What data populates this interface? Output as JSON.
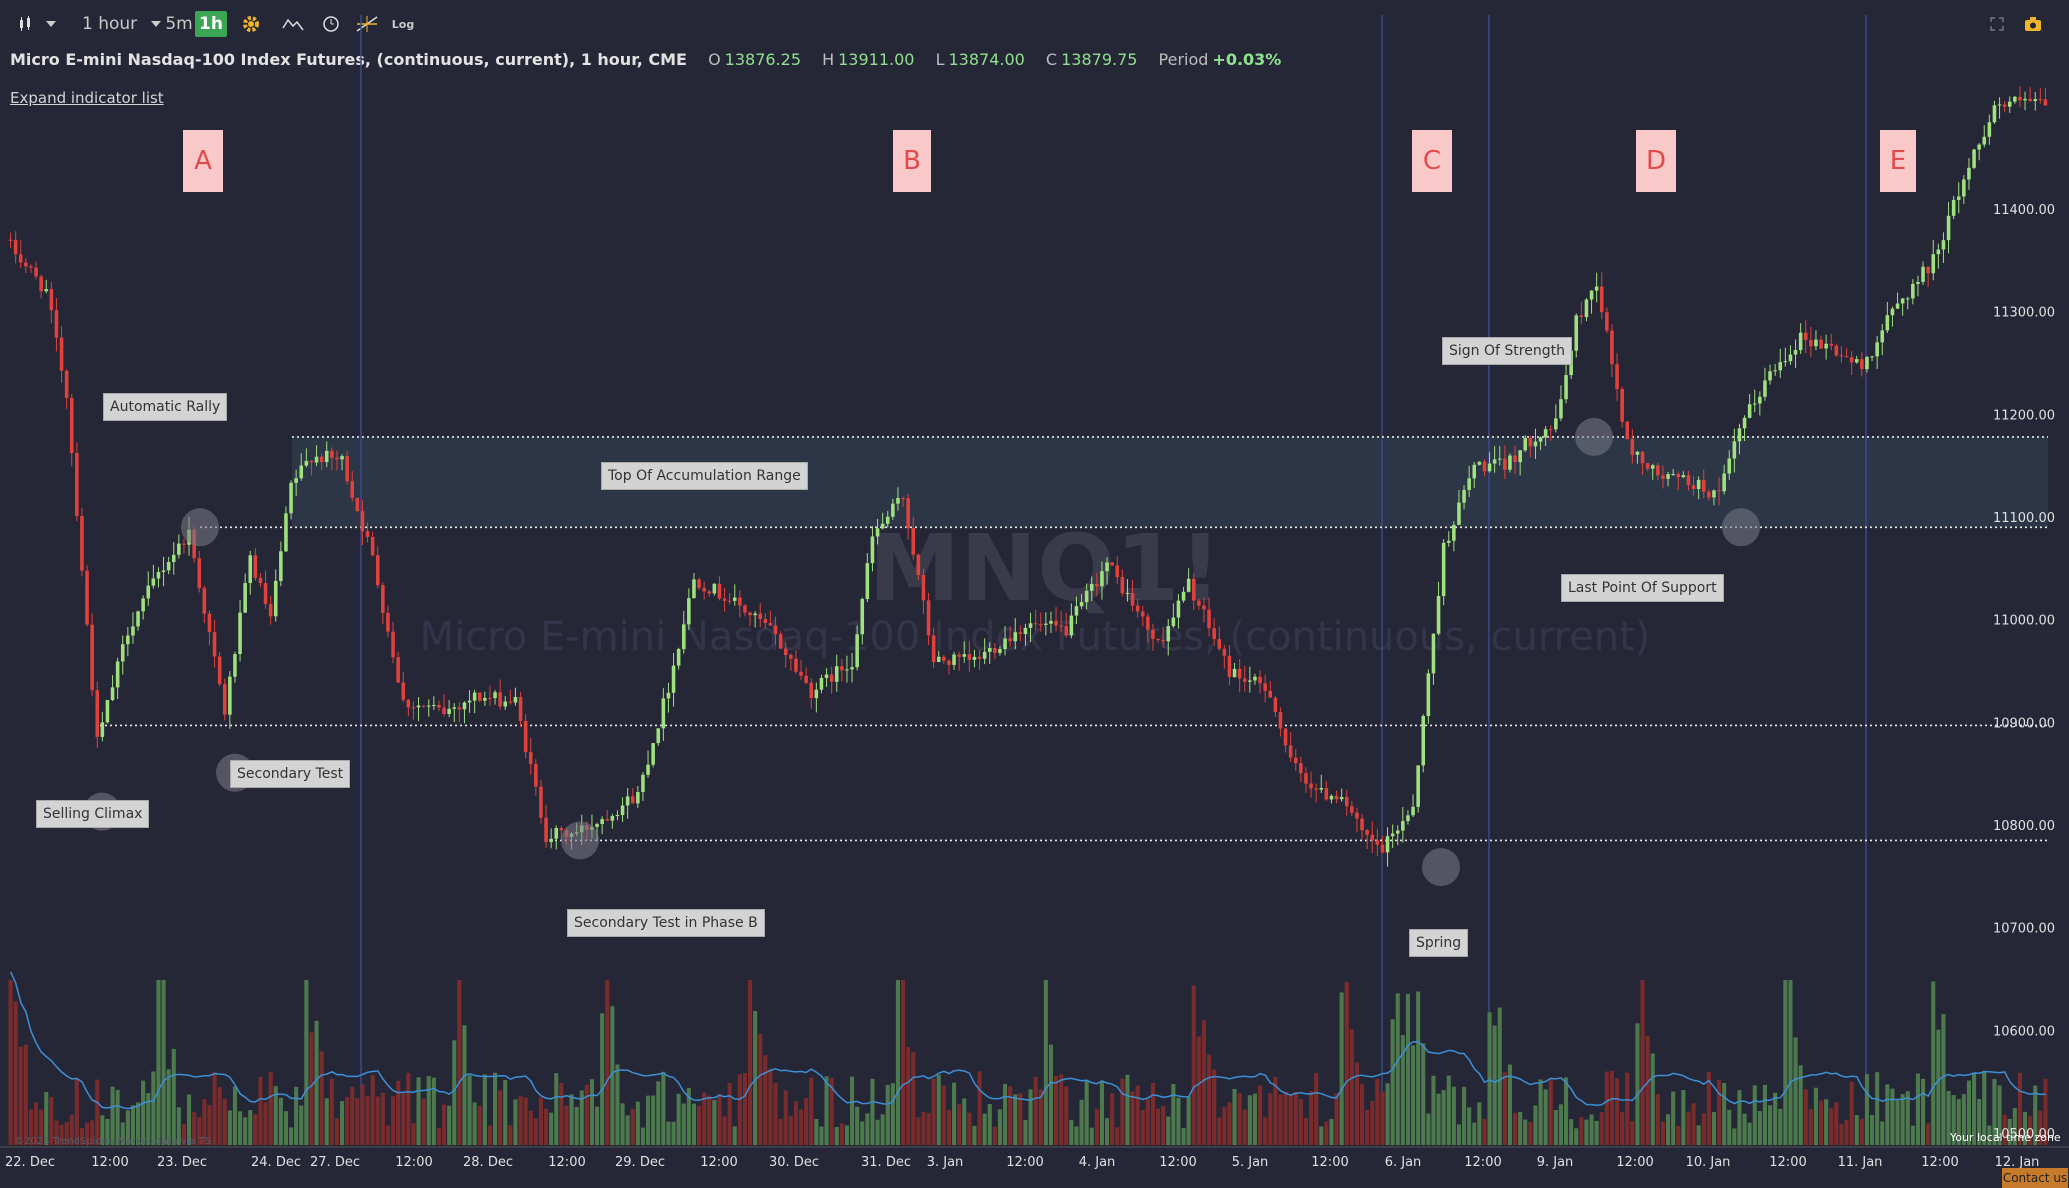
{
  "toolbar": {
    "interval_label": "1 hour",
    "quick_intervals": [
      "5m",
      "1h"
    ],
    "log_label": "Log"
  },
  "info": {
    "title": "Micro E-mini Nasdaq-100 Index Futures, (continuous, current), 1 hour, CME",
    "open_label": "O",
    "open": "13876.25",
    "high_label": "H",
    "high": "13911.00",
    "low_label": "L",
    "low": "13874.00",
    "close_label": "C",
    "close": "13879.75",
    "period_label": "Period",
    "period": "+0.03%"
  },
  "expand_label": "Expand indicator list",
  "watermark": {
    "symbol": "MNQ1!",
    "name": "Micro E-mini Nasdaq-100 Index Futures, (continuous, current)"
  },
  "phases": [
    {
      "label": "A",
      "date_index": 12
    },
    {
      "label": "B",
      "date_index": 116
    },
    {
      "label": "C",
      "date_index": 187
    },
    {
      "label": "D",
      "date_index": 219
    },
    {
      "label": "E",
      "date_index": 250
    }
  ],
  "annotations": [
    {
      "label": "Automatic Rally",
      "price": 11201
    },
    {
      "label": "Selling Climax",
      "price": 10813
    },
    {
      "label": "Secondary Test",
      "price": 10851
    },
    {
      "label": "Top Of Accumulation Range",
      "price": 11142
    },
    {
      "label": "Secondary Test in Phase B",
      "price": 10707
    },
    {
      "label": "Spring",
      "price": 10689
    },
    {
      "label": "Sign Of Strength",
      "price": 11264
    },
    {
      "label": "Last Point Of Support",
      "price": 11034
    }
  ],
  "labels": {
    "local_time": "Your local time zone",
    "contact": "Contact us",
    "copyright": "©2023 TrendSpider. Market data via TS"
  },
  "colors": {
    "up": "#9fe07f",
    "down": "#e0413c",
    "volume_up": "#4d7a4d",
    "volume_down": "#7a2b2b",
    "volume_ma": "#3d8fd6",
    "range_fill": "#2e3a4a",
    "phase_line": "#3a4a8a",
    "background": "#262736"
  },
  "chart_data": {
    "type": "candlestick",
    "y_range": [
      10490,
      11550
    ],
    "y_ticks": [
      10500,
      10600,
      10700,
      10800,
      10900,
      11000,
      11100,
      11200,
      11300,
      11400
    ],
    "y_tick_format": "two_decimals",
    "x_ticks": [
      "22. Dec",
      "12:00",
      "23. Dec",
      "24. Dec",
      "27. Dec",
      "12:00",
      "28. Dec",
      "12:00",
      "29. Dec",
      "12:00",
      "30. Dec",
      "31. Dec",
      "3. Jan",
      "12:00",
      "4. Jan",
      "12:00",
      "5. Jan",
      "12:00",
      "6. Jan",
      "12:00",
      "9. Jan",
      "12:00",
      "10. Jan",
      "12:00",
      "11. Jan",
      "12:00",
      "12. Jan"
    ],
    "horizontal_levels": [
      11178,
      11090,
      10897,
      10785
    ],
    "accumulation_range": [
      11090,
      11178
    ],
    "anchors": [
      [
        0,
        11370
      ],
      [
        8,
        11320
      ],
      [
        12,
        11220
      ],
      [
        18,
        10880
      ],
      [
        24,
        10990
      ],
      [
        30,
        11045
      ],
      [
        36,
        11085
      ],
      [
        43,
        10910
      ],
      [
        48,
        11060
      ],
      [
        52,
        11000
      ],
      [
        56,
        11130
      ],
      [
        60,
        11160
      ],
      [
        66,
        11155
      ],
      [
        72,
        11060
      ],
      [
        78,
        10920
      ],
      [
        86,
        10910
      ],
      [
        92,
        10925
      ],
      [
        100,
        10920
      ],
      [
        106,
        10790
      ],
      [
        112,
        10792
      ],
      [
        118,
        10810
      ],
      [
        124,
        10830
      ],
      [
        130,
        10935
      ],
      [
        135,
        11040
      ],
      [
        142,
        11020
      ],
      [
        150,
        10990
      ],
      [
        158,
        10930
      ],
      [
        166,
        10960
      ],
      [
        170,
        11080
      ],
      [
        176,
        11120
      ],
      [
        182,
        10960
      ],
      [
        190,
        10960
      ],
      [
        200,
        10995
      ],
      [
        208,
        10990
      ],
      [
        216,
        11055
      ],
      [
        226,
        10975
      ],
      [
        232,
        11035
      ],
      [
        240,
        10950
      ],
      [
        248,
        10930
      ],
      [
        252,
        10860
      ],
      [
        258,
        10830
      ],
      [
        262,
        10830
      ],
      [
        266,
        10790
      ],
      [
        270,
        10775
      ],
      [
        276,
        10820
      ],
      [
        282,
        11070
      ],
      [
        288,
        11150
      ],
      [
        294,
        11150
      ],
      [
        300,
        11180
      ],
      [
        304,
        11190
      ],
      [
        308,
        11290
      ],
      [
        312,
        11330
      ],
      [
        318,
        11170
      ],
      [
        324,
        11140
      ],
      [
        330,
        11135
      ],
      [
        336,
        11120
      ],
      [
        340,
        11185
      ],
      [
        346,
        11240
      ],
      [
        352,
        11275
      ],
      [
        358,
        11265
      ],
      [
        364,
        11245
      ],
      [
        370,
        11300
      ],
      [
        378,
        11350
      ],
      [
        384,
        11430
      ],
      [
        390,
        11500
      ],
      [
        396,
        11505
      ],
      [
        400,
        11500
      ]
    ],
    "candle_count": 400,
    "x_min": 0,
    "x_max": 400
  }
}
